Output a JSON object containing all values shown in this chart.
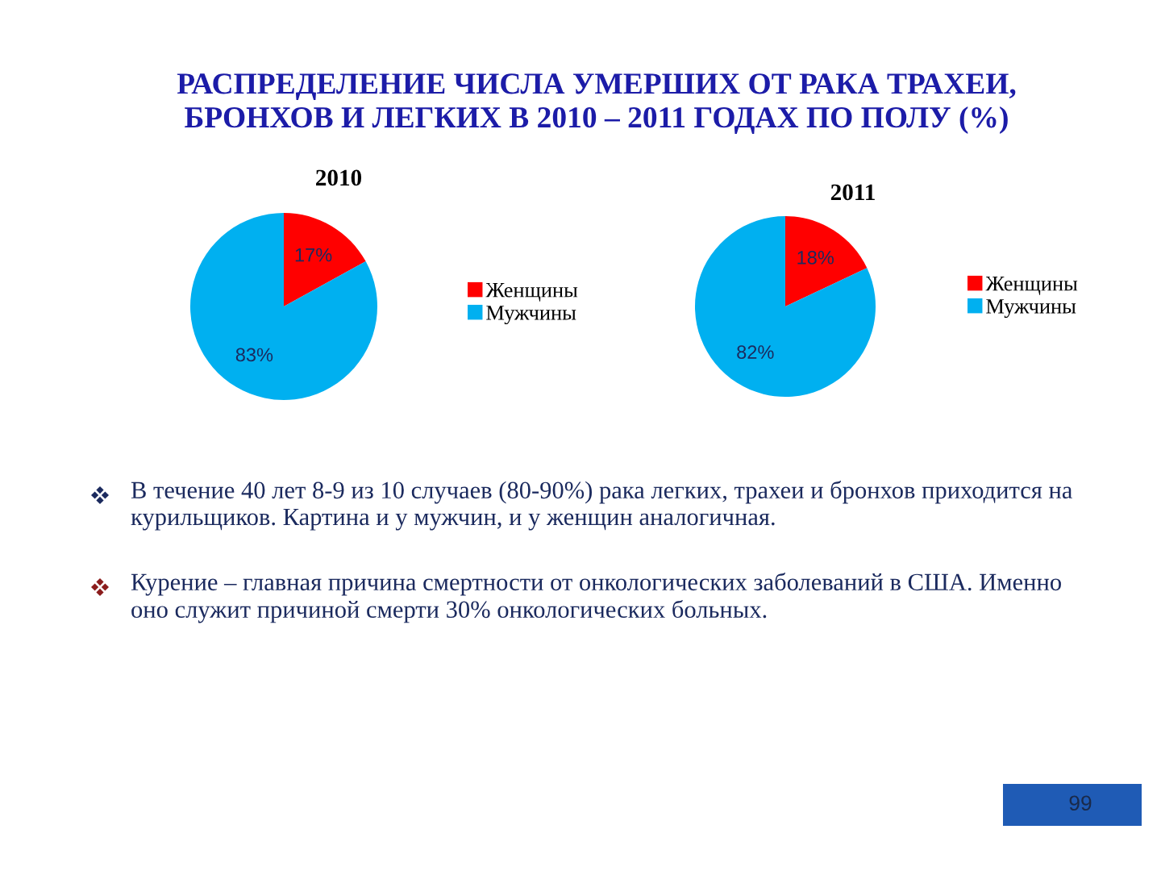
{
  "chart_data": [
    {
      "type": "other",
      "title": "РАСПРЕДЕЛЕНИЕ ЧИСЛА УМЕРШИХ ОТ РАКА ТРАХЕИ,\nБРОНХОВ И ЛЕГКИХ В 2010 – 2011 ГОДАХ ПО ПОЛУ (%)"
    },
    {
      "type": "pie",
      "title": "2010",
      "categories": [
        "Женщины",
        "Мужчины"
      ],
      "values": [
        17,
        83
      ],
      "colors": [
        "#ff0000",
        "#00b0f0"
      ],
      "value_labels": [
        "17%",
        "83%"
      ],
      "legend": "right"
    },
    {
      "type": "pie",
      "title": "2011",
      "categories": [
        "Женщины",
        "Мужчины"
      ],
      "values": [
        18,
        82
      ],
      "colors": [
        "#ff0000",
        "#00b0f0"
      ],
      "value_labels": [
        "18%",
        "82%"
      ],
      "legend": "right"
    },
    {
      "type": "other",
      "annotations": [
        "В течение 40 лет 8-9 из 10 случаев (80-90%) рака легких, трахеи и бронхов приходится на\nкурильщиков. Картина и у мужчин, и у женщин аналогичная.",
        "Курение – главная причина смертности от онкологических заболеваний в США. Именно\nоно служит причиной смерти 30% онкологических больных.",
        "99"
      ]
    }
  ]
}
